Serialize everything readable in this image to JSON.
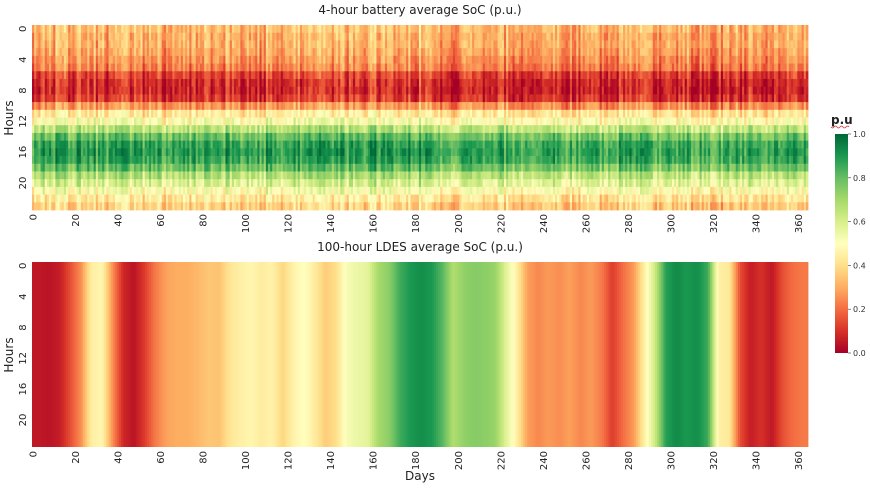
{
  "chart_data": [
    {
      "type": "heatmap",
      "title": "4-hour battery average SoC (p.u.)",
      "xlabel": "",
      "ylabel": "Hours",
      "x_range": [
        0,
        364
      ],
      "y_range": [
        0,
        23
      ],
      "xticks": [
        "0",
        "20",
        "40",
        "60",
        "80",
        "100",
        "120",
        "140",
        "160",
        "180",
        "200",
        "220",
        "240",
        "260",
        "280",
        "300",
        "320",
        "340",
        "360"
      ],
      "yticks": [
        "0",
        "4",
        "8",
        "12",
        "16",
        "20"
      ],
      "colormap": "RdYlGn",
      "value_range": [
        0,
        1
      ],
      "hourly_profile": [
        0.32,
        0.3,
        0.3,
        0.28,
        0.25,
        0.22,
        0.12,
        0.08,
        0.07,
        0.1,
        0.25,
        0.42,
        0.5,
        0.65,
        0.78,
        0.86,
        0.88,
        0.86,
        0.78,
        0.66,
        0.58,
        0.5,
        0.42,
        0.36
      ],
      "day_bin_size": 10,
      "day_bin_offsets": [
        0.0,
        0.02,
        0.03,
        0.0,
        0.02,
        0.0,
        -0.02,
        0.0,
        0.01,
        0.02,
        0.0,
        0.03,
        0.04,
        0.03,
        0.02,
        0.04,
        0.05,
        0.03,
        0.04,
        -0.02,
        0.0,
        0.01,
        0.0,
        0.0,
        -0.01,
        -0.02,
        -0.01,
        0.0,
        -0.01,
        0.0,
        0.0,
        -0.02,
        -0.03,
        0.0,
        0.0,
        0.02,
        0.03
      ]
    },
    {
      "type": "heatmap",
      "title": "100-hour LDES average SoC (p.u.)",
      "xlabel": "Days",
      "ylabel": "Hours",
      "x_range": [
        0,
        364
      ],
      "y_range": [
        0,
        23
      ],
      "xticks": [
        "0",
        "20",
        "40",
        "60",
        "80",
        "100",
        "120",
        "140",
        "160",
        "180",
        "200",
        "220",
        "240",
        "260",
        "280",
        "300",
        "320",
        "340",
        "360"
      ],
      "yticks": [
        "0",
        "4",
        "8",
        "12",
        "16",
        "20"
      ],
      "colormap": "RdYlGn",
      "value_range": [
        0,
        1
      ],
      "day_bin_size": 5,
      "daily_values": [
        0.05,
        0.04,
        0.06,
        0.15,
        0.25,
        0.45,
        0.47,
        0.25,
        0.08,
        0.04,
        0.12,
        0.22,
        0.28,
        0.3,
        0.3,
        0.32,
        0.35,
        0.34,
        0.42,
        0.45,
        0.47,
        0.44,
        0.46,
        0.38,
        0.46,
        0.5,
        0.44,
        0.36,
        0.4,
        0.52,
        0.55,
        0.57,
        0.7,
        0.74,
        0.85,
        0.9,
        0.92,
        0.9,
        0.82,
        0.68,
        0.73,
        0.75,
        0.74,
        0.72,
        0.58,
        0.45,
        0.28,
        0.24,
        0.27,
        0.25,
        0.28,
        0.24,
        0.27,
        0.22,
        0.12,
        0.2,
        0.27,
        0.45,
        0.62,
        0.88,
        0.93,
        0.9,
        0.92,
        0.85,
        0.45,
        0.43,
        0.15,
        0.06,
        0.1,
        0.05,
        0.15,
        0.2,
        0.22
      ]
    }
  ],
  "colorbar": {
    "label": "p.u",
    "ticks": [
      "0.0",
      "0.2",
      "0.4",
      "0.6",
      "0.8",
      "1.0"
    ]
  }
}
